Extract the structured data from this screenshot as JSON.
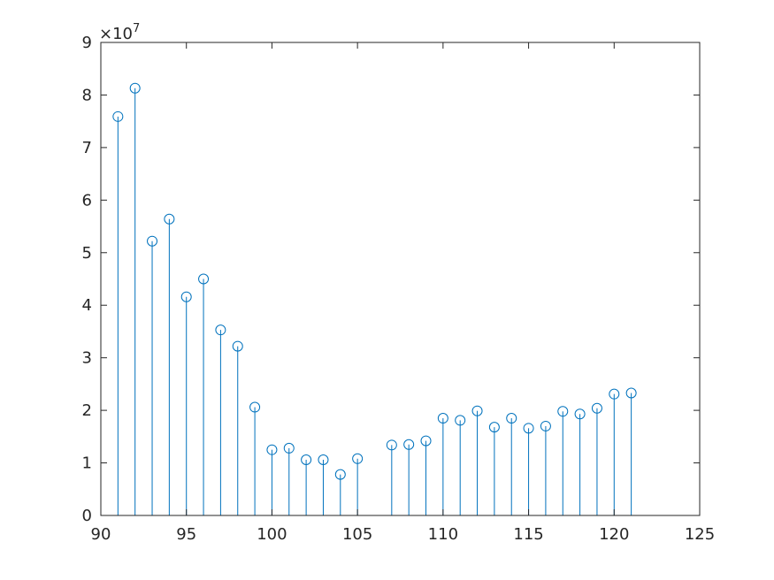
{
  "chart_data": {
    "type": "stem",
    "title": "",
    "xlabel": "",
    "ylabel": "",
    "xlim": [
      90,
      125
    ],
    "ylim": [
      0,
      90000000
    ],
    "x_ticks": [
      "90",
      "95",
      "100",
      "105",
      "110",
      "115",
      "120",
      "125"
    ],
    "y_ticks": [
      "0",
      "1",
      "2",
      "3",
      "4",
      "5",
      "6",
      "7",
      "8",
      "9"
    ],
    "y_exponent": {
      "base": "×10",
      "power": "7"
    },
    "grid": false,
    "box": true,
    "marker": "circle",
    "color": "#0072bd",
    "axis_color": "#262626",
    "x": [
      91,
      92,
      93,
      94,
      95,
      96,
      97,
      98,
      99,
      100,
      101,
      102,
      103,
      104,
      105,
      107,
      108,
      109,
      110,
      111,
      112,
      113,
      114,
      115,
      116,
      117,
      118,
      119,
      120,
      121
    ],
    "values": [
      75900000,
      81300000,
      52200000,
      56400000,
      41600000,
      45000000,
      35300000,
      32200000,
      20600000,
      12500000,
      12800000,
      10600000,
      10600000,
      7800000,
      10800000,
      13400000,
      13500000,
      14200000,
      18500000,
      18100000,
      19900000,
      16800000,
      18500000,
      16600000,
      17000000,
      19800000,
      19300000,
      20400000,
      23100000,
      23300000
    ]
  }
}
